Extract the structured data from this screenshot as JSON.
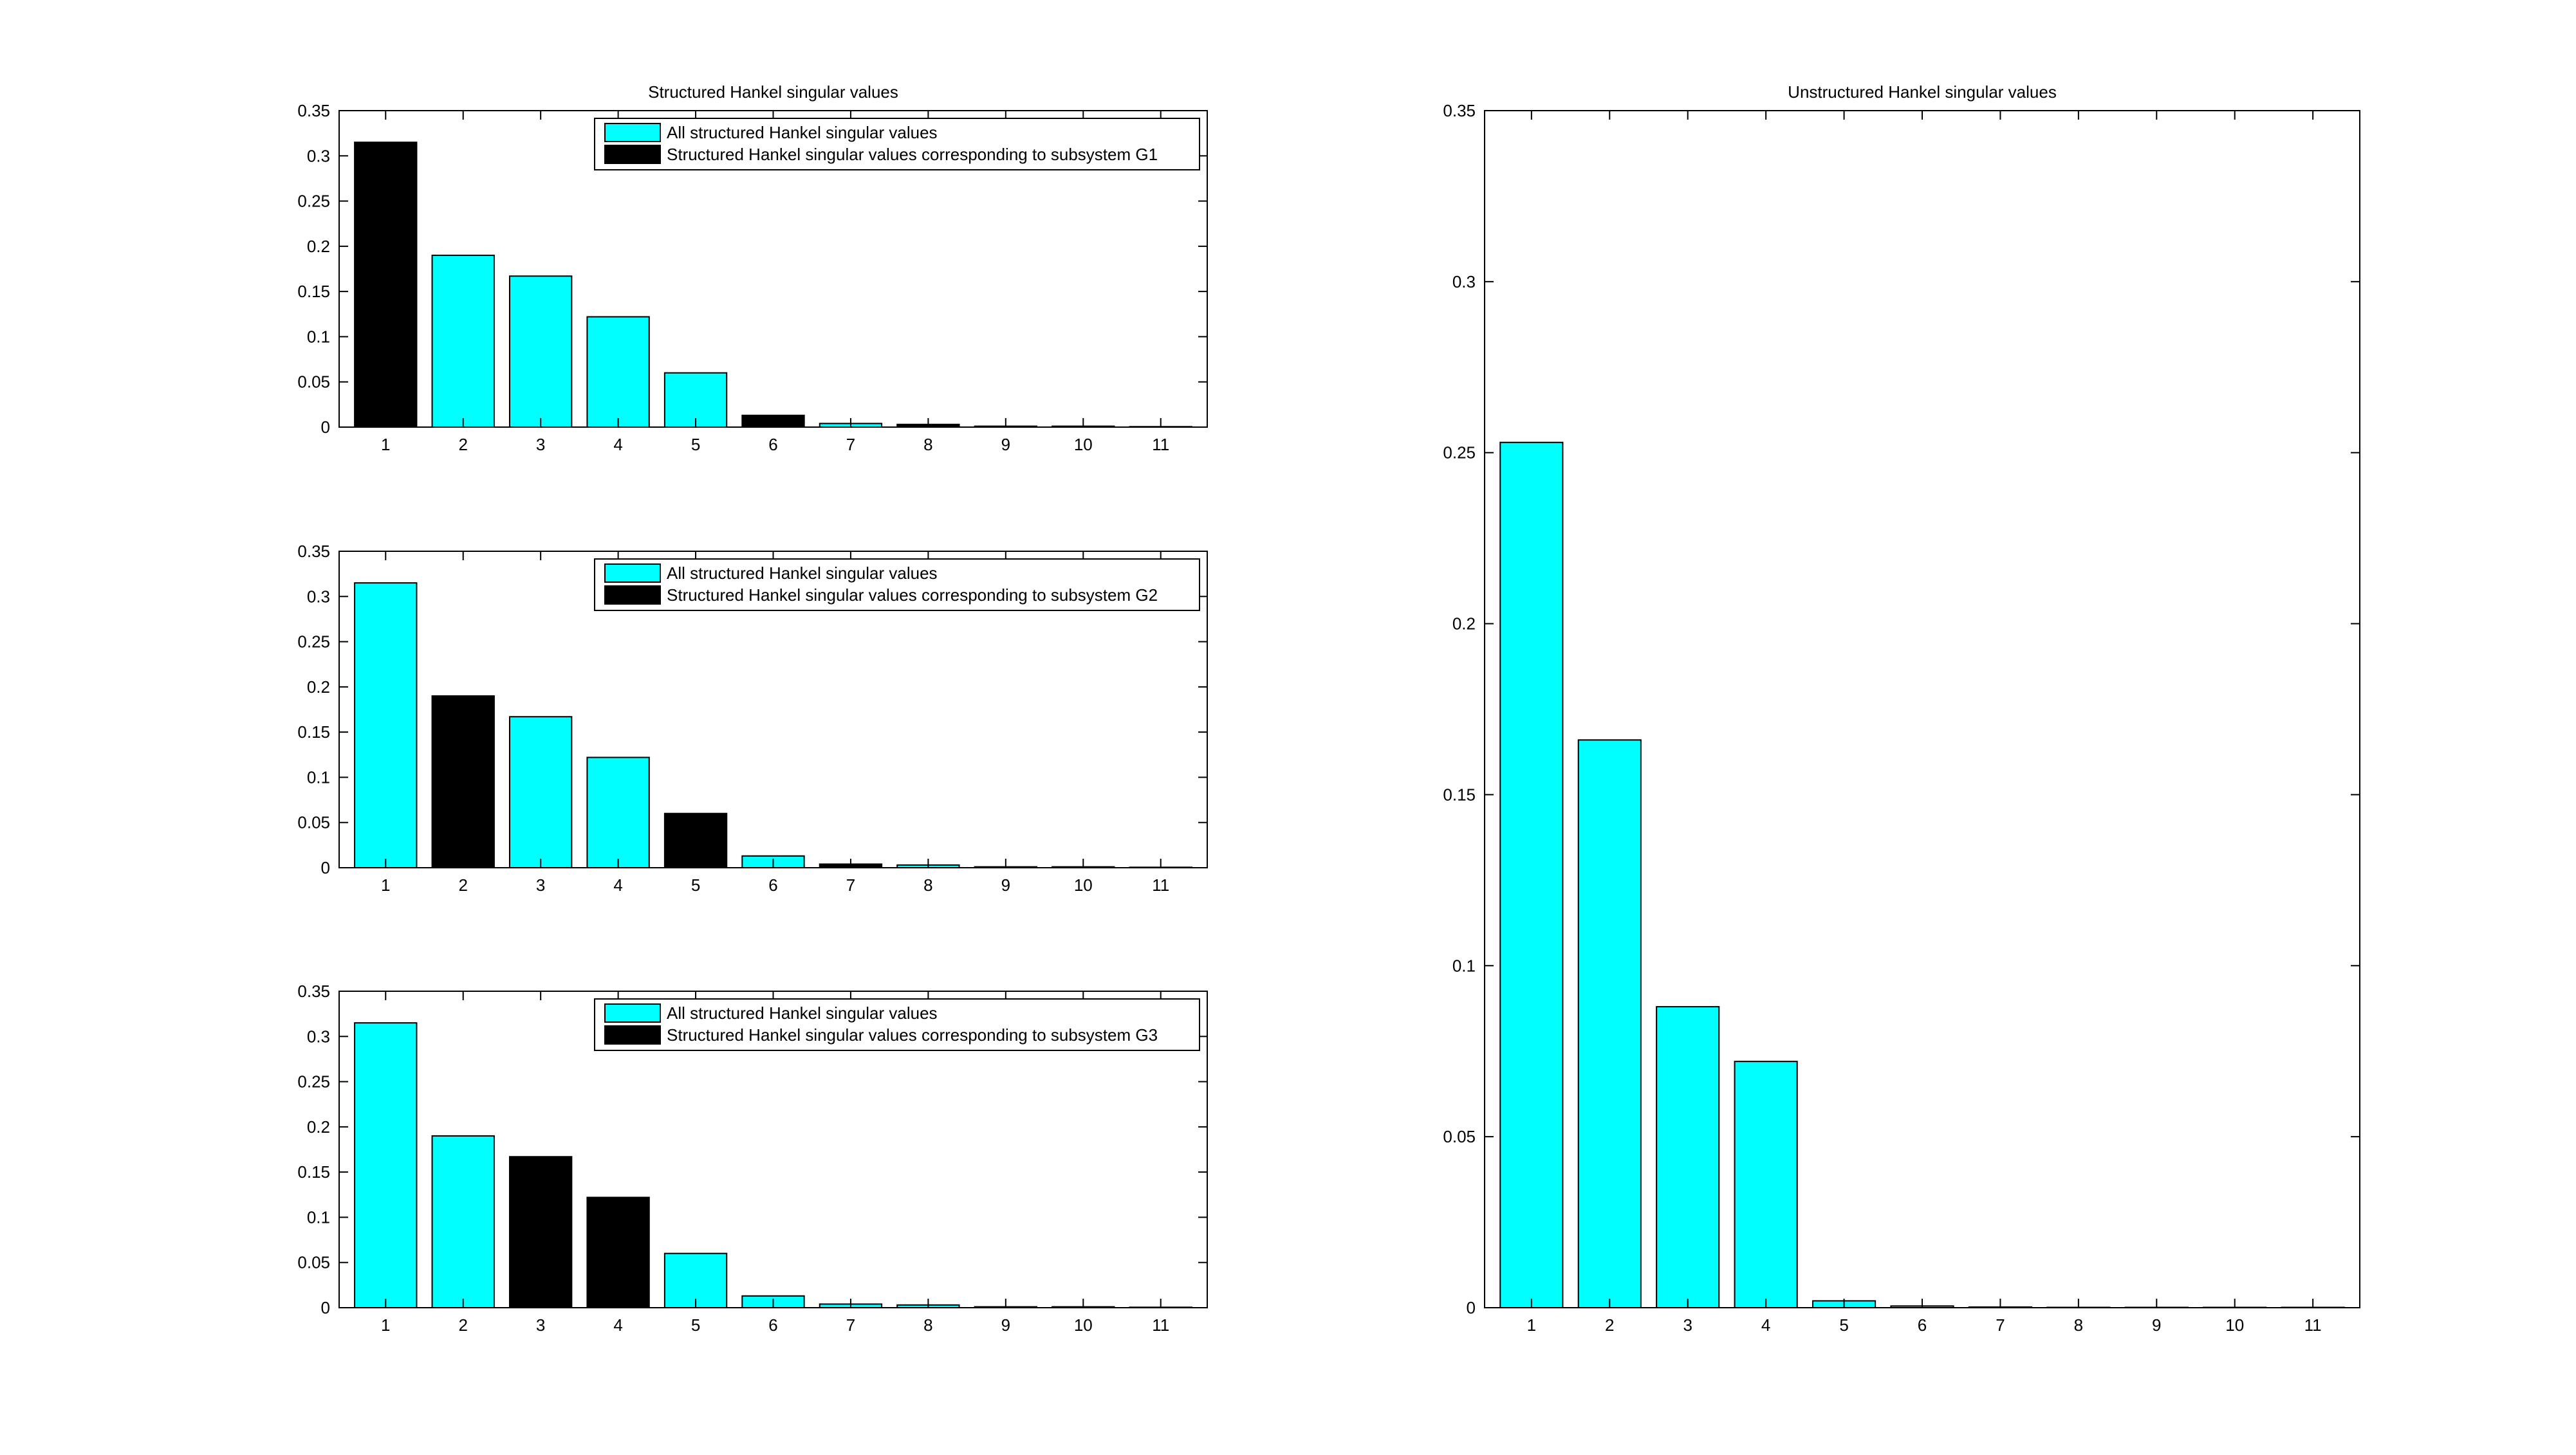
{
  "chart_data": [
    {
      "type": "bar",
      "title": "Structured Hankel singular values",
      "xlabel": "",
      "ylabel": "",
      "categories": [
        "1",
        "2",
        "3",
        "4",
        "5",
        "6",
        "7",
        "8",
        "9",
        "10",
        "11"
      ],
      "values": [
        0.315,
        0.19,
        0.167,
        0.122,
        0.06,
        0.013,
        0.004,
        0.003,
        0.001,
        0.001,
        0.0005
      ],
      "highlighted": [
        true,
        false,
        false,
        false,
        false,
        true,
        false,
        true,
        false,
        false,
        false
      ],
      "ylim": [
        0,
        0.35
      ],
      "yticks": [
        "0",
        "0.05",
        "0.1",
        "0.15",
        "0.2",
        "0.25",
        "0.3",
        "0.35"
      ],
      "legend": [
        "All structured Hankel singular values",
        "Structured Hankel singular values corresponding to subsystem G1"
      ],
      "legend_position": "top-right",
      "grid": false
    },
    {
      "type": "bar",
      "title": "",
      "xlabel": "",
      "ylabel": "",
      "categories": [
        "1",
        "2",
        "3",
        "4",
        "5",
        "6",
        "7",
        "8",
        "9",
        "10",
        "11"
      ],
      "values": [
        0.315,
        0.19,
        0.167,
        0.122,
        0.06,
        0.013,
        0.004,
        0.003,
        0.001,
        0.001,
        0.0005
      ],
      "highlighted": [
        false,
        true,
        false,
        false,
        true,
        false,
        true,
        false,
        false,
        false,
        false
      ],
      "ylim": [
        0,
        0.35
      ],
      "yticks": [
        "0",
        "0.05",
        "0.1",
        "0.15",
        "0.2",
        "0.25",
        "0.3",
        "0.35"
      ],
      "legend": [
        "All structured Hankel singular values",
        "Structured Hankel singular values corresponding to subsystem G2"
      ],
      "legend_position": "top-right",
      "grid": false
    },
    {
      "type": "bar",
      "title": "",
      "xlabel": "",
      "ylabel": "",
      "categories": [
        "1",
        "2",
        "3",
        "4",
        "5",
        "6",
        "7",
        "8",
        "9",
        "10",
        "11"
      ],
      "values": [
        0.315,
        0.19,
        0.167,
        0.122,
        0.06,
        0.013,
        0.004,
        0.003,
        0.001,
        0.001,
        0.0005
      ],
      "highlighted": [
        false,
        false,
        true,
        true,
        false,
        false,
        false,
        false,
        false,
        false,
        false
      ],
      "ylim": [
        0,
        0.35
      ],
      "yticks": [
        "0",
        "0.05",
        "0.1",
        "0.15",
        "0.2",
        "0.25",
        "0.3",
        "0.35"
      ],
      "legend": [
        "All structured Hankel singular values",
        "Structured Hankel singular values corresponding to subsystem G3"
      ],
      "legend_position": "top-right",
      "grid": false
    },
    {
      "type": "bar",
      "title": "Unstructured Hankel singular values",
      "xlabel": "",
      "ylabel": "",
      "categories": [
        "1",
        "2",
        "3",
        "4",
        "5",
        "6",
        "7",
        "8",
        "9",
        "10",
        "11"
      ],
      "values": [
        0.253,
        0.166,
        0.088,
        0.072,
        0.002,
        0.0005,
        0.0002,
        0.0001,
        0.0001,
        0.0001,
        0.0001
      ],
      "highlighted": [
        false,
        false,
        false,
        false,
        false,
        false,
        false,
        false,
        false,
        false,
        false
      ],
      "ylim": [
        0,
        0.35
      ],
      "yticks": [
        "0",
        "0.05",
        "0.1",
        "0.15",
        "0.2",
        "0.25",
        "0.3",
        "0.35"
      ],
      "legend": [],
      "grid": false
    }
  ],
  "colors": {
    "all_values": "#00ffff",
    "subsystem_values": "#000000",
    "frame": "#000000",
    "background": "#ffffff"
  }
}
